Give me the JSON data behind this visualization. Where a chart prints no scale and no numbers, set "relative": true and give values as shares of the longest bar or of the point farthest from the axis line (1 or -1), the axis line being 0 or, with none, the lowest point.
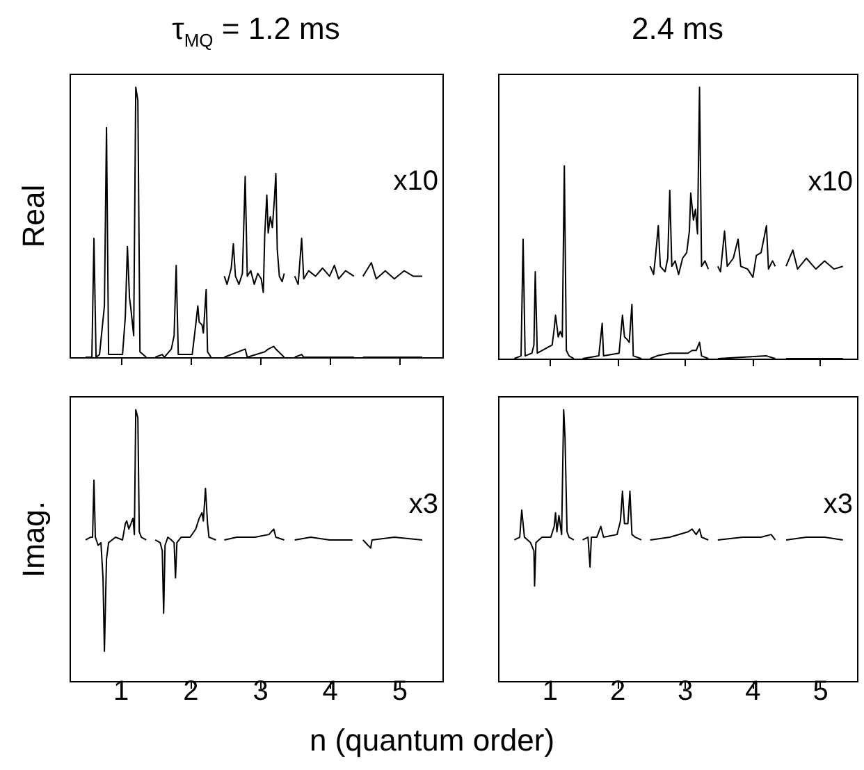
{
  "chart_data": [
    {
      "type": "line",
      "title": "τ$_{MQ}$ = 1.2 ms",
      "ylabel": "Real",
      "relative": true,
      "xlim": [
        0.27,
        5.62
      ],
      "xticks": [
        1,
        2,
        3,
        4,
        5
      ],
      "tick_labels": false,
      "annotations": [
        "x10"
      ],
      "series": [
        {
          "color": "#000000",
          "x": [
            0.5,
            0.59,
            0.62,
            0.65,
            0.7,
            0.77,
            0.8,
            0.83,
            1.03,
            1.07,
            1.1,
            1.13,
            1.15,
            1.19,
            1.22,
            1.25,
            1.28,
            1.37
          ],
          "values": [
            0,
            0,
            0.44,
            0,
            0.01,
            0.19,
            0.85,
            0.01,
            0.01,
            0.15,
            0.41,
            0.22,
            0.18,
            0.08,
            1,
            0.95,
            0.02,
            0
          ]
        },
        {
          "color": "#000000",
          "x": [
            1.5,
            1.6,
            1.63,
            1.73,
            1.77,
            1.8,
            1.83,
            2.03,
            2.08,
            2.11,
            2.13,
            2.17,
            2.19,
            2.23,
            2.25,
            2.3
          ],
          "values": [
            0,
            0.01,
            0,
            0.03,
            0.08,
            0.34,
            0.01,
            0.01,
            0.12,
            0.19,
            0.13,
            0.12,
            0.09,
            0.25,
            0.02,
            0
          ]
        },
        {
          "color": "#000000",
          "x": [
            2.49,
            2.79,
            2.82,
            3.07,
            3.12,
            3.2,
            3.23,
            3.35
          ],
          "values": [
            0,
            0.03,
            0,
            0.02,
            0.03,
            0.04,
            0.03,
            0
          ]
        },
        {
          "color": "#000000",
          "x": [
            3.5,
            3.6,
            3.63,
            4.35
          ],
          "values": [
            0,
            0.01,
            0,
            0
          ]
        },
        {
          "color": "#000000",
          "x": [
            4.48,
            5.33
          ],
          "values": [
            0,
            0
          ]
        },
        {
          "color": "#000000",
          "x": [
            2.49,
            2.53,
            2.59,
            2.62,
            2.65,
            2.7,
            2.75,
            2.79,
            2.82,
            2.87,
            2.92,
            2.97,
            3.02,
            3.05,
            3.07,
            3.1,
            3.12,
            3.15,
            3.18,
            3.21,
            3.23,
            3.25,
            3.28,
            3.32,
            3.35
          ],
          "values": [
            0.3,
            0.27,
            0.33,
            0.42,
            0.3,
            0.27,
            0.31,
            0.67,
            0.3,
            0.32,
            0.27,
            0.31,
            0.29,
            0.24,
            0.45,
            0.6,
            0.46,
            0.52,
            0.48,
            0.59,
            0.68,
            0.4,
            0.3,
            0.28,
            0.31
          ]
        },
        {
          "color": "#000000",
          "x": [
            3.5,
            3.55,
            3.6,
            3.63,
            3.7,
            3.8,
            3.9,
            4.0,
            4.07,
            4.13,
            4.23,
            4.35
          ],
          "values": [
            0.3,
            0.27,
            0.44,
            0.29,
            0.32,
            0.3,
            0.33,
            0.3,
            0.34,
            0.29,
            0.32,
            0.3
          ]
        },
        {
          "color": "#000000",
          "x": [
            4.48,
            4.6,
            4.67,
            4.8,
            4.93,
            5.07,
            5.2,
            5.33
          ],
          "values": [
            0.3,
            0.35,
            0.29,
            0.32,
            0.29,
            0.32,
            0.3,
            0.3
          ]
        }
      ]
    },
    {
      "type": "line",
      "title": "2.4 ms",
      "relative": true,
      "xlim": [
        0.24,
        5.55
      ],
      "xticks": [
        1,
        2,
        3,
        4,
        5
      ],
      "tick_labels": false,
      "annotations": [
        "x10"
      ],
      "series": [
        {
          "color": "#000000",
          "x": [
            0.48,
            0.58,
            0.61,
            0.64,
            0.74,
            0.77,
            0.79,
            0.82,
            1.04,
            1.07,
            1.09,
            1.13,
            1.16,
            1.19,
            1.22,
            1.25,
            1.29,
            1.36
          ],
          "values": [
            0,
            0.01,
            0.44,
            0.01,
            0.02,
            0.05,
            0.32,
            0.02,
            0.05,
            0.11,
            0.16,
            0.08,
            0.1,
            0.08,
            0.71,
            0.03,
            0.01,
            0
          ]
        },
        {
          "color": "#000000",
          "x": [
            1.49,
            1.73,
            1.78,
            1.8,
            2.03,
            2.08,
            2.11,
            2.15,
            2.18,
            2.22,
            2.24,
            2.36
          ],
          "values": [
            0,
            0.01,
            0.13,
            0.01,
            0.02,
            0.16,
            0.08,
            0.07,
            0.06,
            0.2,
            0.01,
            0
          ]
        },
        {
          "color": "#000000",
          "x": [
            2.49,
            2.59,
            2.78,
            3.05,
            3.11,
            3.17,
            3.22,
            3.25,
            3.35
          ],
          "values": [
            0,
            0.01,
            0.02,
            0.02,
            0.03,
            0.03,
            0.06,
            0.01,
            0
          ]
        },
        {
          "color": "#000000",
          "x": [
            3.49,
            4.21,
            4.34
          ],
          "values": [
            0,
            0.01,
            0
          ]
        },
        {
          "color": "#000000",
          "x": [
            4.5,
            5.34
          ],
          "values": [
            0,
            0
          ]
        },
        {
          "color": "#000000",
          "x": [
            2.49,
            2.54,
            2.57,
            2.61,
            2.64,
            2.71,
            2.75,
            2.78,
            2.81,
            2.86,
            2.91,
            2.97,
            3.03,
            3.07,
            3.09,
            3.13,
            3.16,
            3.19,
            3.22,
            3.25,
            3.3,
            3.35
          ],
          "values": [
            0.34,
            0.31,
            0.38,
            0.49,
            0.34,
            0.32,
            0.37,
            0.62,
            0.34,
            0.36,
            0.31,
            0.37,
            0.39,
            0.47,
            0.61,
            0.51,
            0.55,
            0.46,
            1,
            0.34,
            0.36,
            0.33
          ]
        },
        {
          "color": "#000000",
          "x": [
            3.49,
            3.53,
            3.59,
            3.63,
            3.72,
            3.79,
            3.83,
            3.93,
            4.01,
            4.06,
            4.13,
            4.17,
            4.21,
            4.24,
            4.3,
            4.34
          ],
          "values": [
            0.34,
            0.32,
            0.47,
            0.34,
            0.37,
            0.44,
            0.34,
            0.33,
            0.3,
            0.38,
            0.39,
            0.44,
            0.49,
            0.33,
            0.36,
            0.34
          ]
        },
        {
          "color": "#000000",
          "x": [
            4.5,
            4.6,
            4.67,
            4.8,
            4.94,
            5.07,
            5.21,
            5.34
          ],
          "values": [
            0.34,
            0.4,
            0.33,
            0.37,
            0.33,
            0.36,
            0.33,
            0.34
          ]
        }
      ]
    },
    {
      "type": "line",
      "ylabel": "Imag.",
      "xlabel": "n (quantum order)",
      "relative": true,
      "xlim": [
        0.27,
        5.62
      ],
      "xticks": [
        1,
        2,
        3,
        4,
        5
      ],
      "tick_labels": "x",
      "annotations": [
        "x3"
      ],
      "series": [
        {
          "color": "#000000",
          "x": [
            0.5,
            0.57,
            0.6,
            0.62,
            0.64,
            0.68,
            0.72,
            0.75,
            0.77,
            0.8,
            0.83,
            0.93,
            1.03,
            1.07,
            1.09,
            1.12,
            1.15,
            1.18,
            1.2,
            1.22,
            1.25,
            1.27,
            1.3,
            1.37
          ],
          "values": [
            0.52,
            0.53,
            0.53,
            0.74,
            0.53,
            0.5,
            0.51,
            0.38,
            0.11,
            0.45,
            0.51,
            0.53,
            0.52,
            0.58,
            0.59,
            0.56,
            0.58,
            0.6,
            0.54,
            1,
            0.97,
            0.55,
            0.53,
            0.52
          ]
        },
        {
          "color": "#000000",
          "x": [
            1.5,
            1.57,
            1.6,
            1.62,
            1.64,
            1.68,
            1.73,
            1.77,
            1.79,
            1.81,
            1.87,
            2.0,
            2.08,
            2.13,
            2.17,
            2.19,
            2.22,
            2.25,
            2.27,
            2.37
          ],
          "values": [
            0.52,
            0.51,
            0.48,
            0.25,
            0.5,
            0.53,
            0.52,
            0.51,
            0.38,
            0.51,
            0.53,
            0.53,
            0.56,
            0.6,
            0.62,
            0.59,
            0.71,
            0.58,
            0.53,
            0.52
          ]
        },
        {
          "color": "#000000",
          "x": [
            2.49,
            2.67,
            2.93,
            3.13,
            3.2,
            3.23,
            3.35
          ],
          "values": [
            0.52,
            0.53,
            0.53,
            0.54,
            0.56,
            0.53,
            0.52
          ]
        },
        {
          "color": "#000000",
          "x": [
            3.5,
            3.73,
            4.0,
            4.33
          ],
          "values": [
            0.52,
            0.53,
            0.52,
            0.52
          ]
        },
        {
          "color": "#000000",
          "x": [
            4.48,
            4.59,
            4.61,
            4.93,
            5.33
          ],
          "values": [
            0.52,
            0.49,
            0.52,
            0.53,
            0.52
          ]
        }
      ]
    },
    {
      "type": "line",
      "relative": true,
      "xlim": [
        0.24,
        5.55
      ],
      "xticks": [
        1,
        2,
        3,
        4,
        5
      ],
      "tick_labels": "x",
      "annotations": [
        "x3"
      ],
      "series": [
        {
          "color": "#000000",
          "x": [
            0.48,
            0.56,
            0.59,
            0.63,
            0.72,
            0.77,
            0.78,
            0.8,
            0.89,
            1.02,
            1.07,
            1.09,
            1.11,
            1.14,
            1.18,
            1.21,
            1.23,
            1.26,
            1.29,
            1.36
          ],
          "values": [
            0.52,
            0.53,
            0.63,
            0.53,
            0.51,
            0.48,
            0.35,
            0.51,
            0.53,
            0.53,
            0.57,
            0.62,
            0.55,
            0.61,
            0.54,
            1,
            0.9,
            0.55,
            0.53,
            0.52
          ]
        },
        {
          "color": "#000000",
          "x": [
            1.49,
            1.57,
            1.6,
            1.62,
            1.7,
            1.76,
            1.8,
            2.0,
            2.05,
            2.08,
            2.11,
            2.16,
            2.19,
            2.22,
            2.27,
            2.36
          ],
          "values": [
            0.52,
            0.53,
            0.42,
            0.53,
            0.53,
            0.57,
            0.53,
            0.54,
            0.59,
            0.7,
            0.58,
            0.58,
            0.7,
            0.54,
            0.53,
            0.52
          ]
        },
        {
          "color": "#000000",
          "x": [
            2.49,
            2.78,
            3.05,
            3.11,
            3.17,
            3.22,
            3.25,
            3.35
          ],
          "values": [
            0.52,
            0.53,
            0.55,
            0.56,
            0.54,
            0.56,
            0.53,
            0.52
          ]
        },
        {
          "color": "#000000",
          "x": [
            3.49,
            3.86,
            4.13,
            4.28,
            4.34
          ],
          "values": [
            0.52,
            0.53,
            0.53,
            0.54,
            0.52
          ]
        },
        {
          "color": "#000000",
          "x": [
            4.5,
            4.8,
            5.07,
            5.34
          ],
          "values": [
            0.52,
            0.53,
            0.53,
            0.52
          ]
        }
      ]
    }
  ]
}
